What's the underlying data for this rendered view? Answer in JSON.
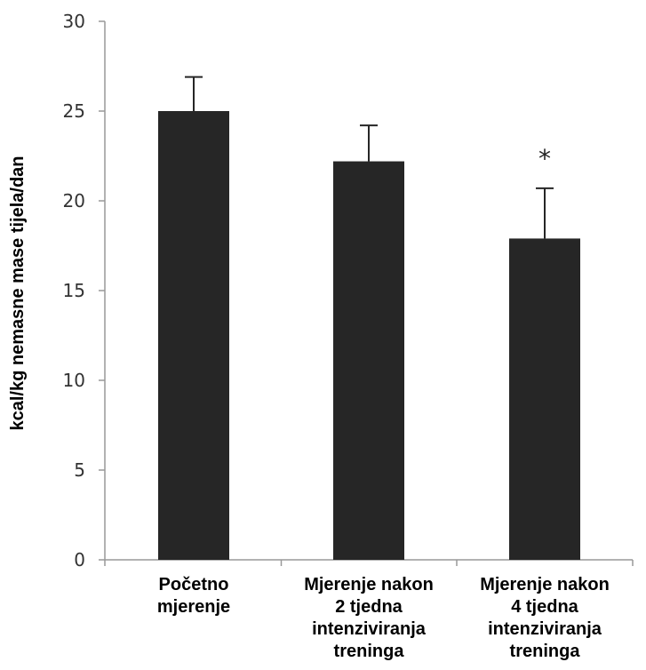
{
  "chart_data": {
    "type": "bar",
    "title": "",
    "xlabel": "",
    "ylabel": "kcal/kg nemasne mase tijela/dan",
    "ylim": [
      0,
      30
    ],
    "yticks": [
      "0",
      "5",
      "10",
      "15",
      "20",
      "25",
      "30"
    ],
    "categories": [
      [
        "Početno",
        "mjerenje"
      ],
      [
        "Mjerenje nakon",
        "2 tjedna",
        "intenziviranja",
        "treninga"
      ],
      [
        "Mjerenje nakon",
        "4 tjedna",
        "intenziviranja",
        "treninga"
      ]
    ],
    "values": [
      25.0,
      22.2,
      17.9
    ],
    "error_upper": [
      1.9,
      2.0,
      2.8
    ],
    "annotations": [
      "",
      "",
      "*"
    ],
    "grid": false,
    "bar_color": "#262626",
    "axis_color": "#999999"
  }
}
